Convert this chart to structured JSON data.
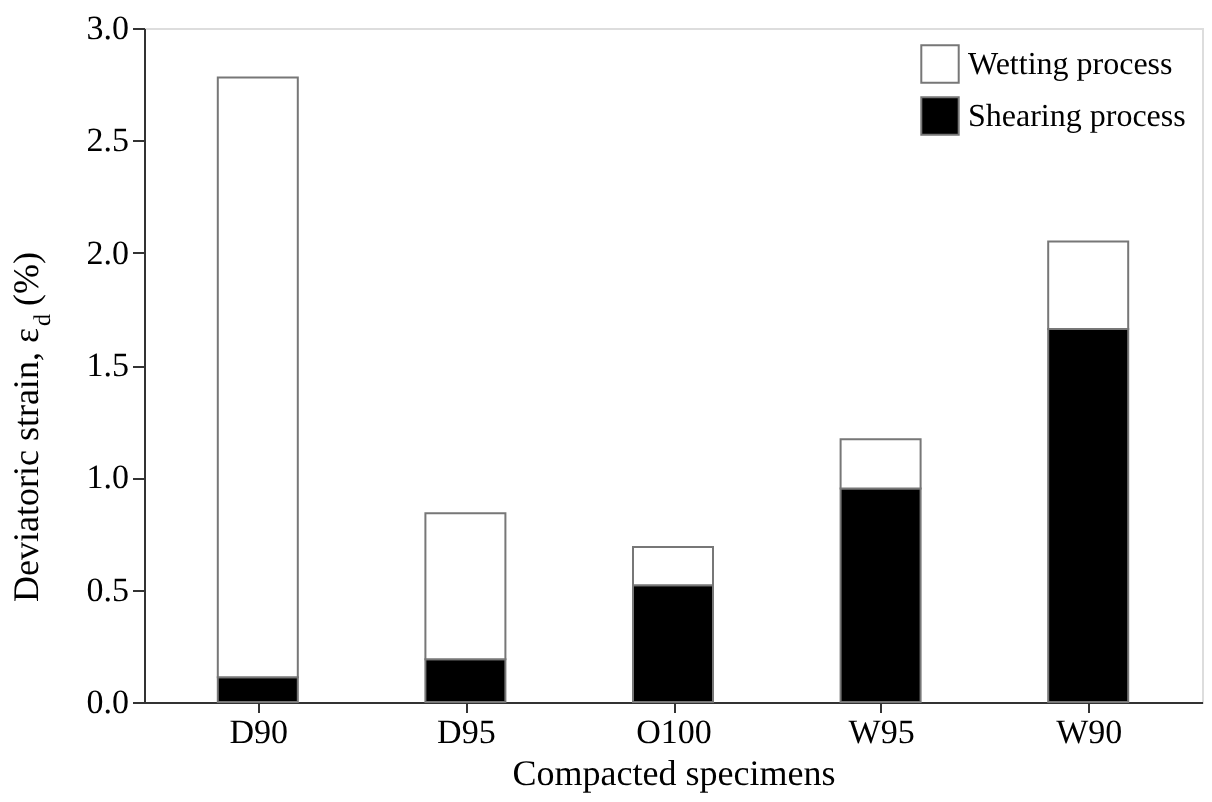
{
  "chart_data": {
    "type": "bar",
    "stacked": true,
    "xlabel": "Compacted specimens",
    "ylabel": "Deviatoric strain, ε$_{d}$ (%)",
    "categories": [
      "D90",
      "D95",
      "O100",
      "W95",
      "W90"
    ],
    "series": [
      {
        "name": "Shearing process",
        "color": "#000000",
        "values": [
          0.11,
          0.19,
          0.52,
          0.95,
          1.66
        ]
      },
      {
        "name": "Wetting process",
        "color": "#ffffff",
        "values": [
          2.67,
          0.65,
          0.17,
          0.22,
          0.39
        ]
      }
    ],
    "ylim": [
      0,
      3
    ],
    "yticks": [
      {
        "value": 0,
        "label": "0.0"
      },
      0.5,
      {
        "value": 1,
        "label": "1.0"
      },
      1.5,
      {
        "value": 2,
        "label": "2.0"
      },
      2.5,
      {
        "value": 3,
        "label": "3.0"
      }
    ],
    "grid": false,
    "legend": "top right"
  }
}
